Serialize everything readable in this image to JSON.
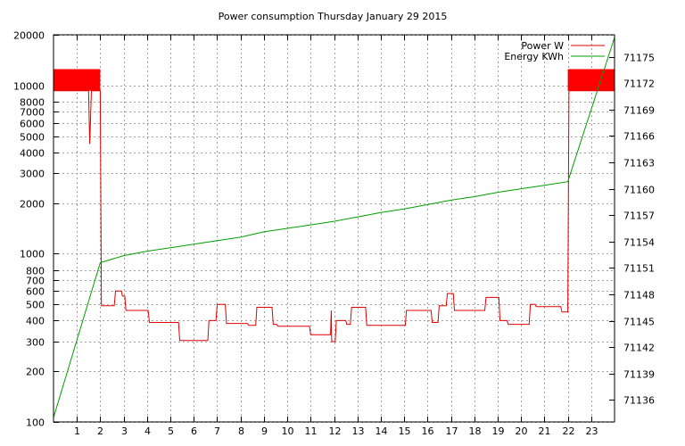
{
  "chart_data": {
    "type": "line",
    "title": "Power consumption Thursday January 29 2015",
    "xlabel": "",
    "ylabel": "",
    "y2label": "",
    "grid": true,
    "legend_position": "top-right",
    "xlim": [
      0,
      24
    ],
    "x_ticks": [
      1,
      2,
      3,
      4,
      5,
      6,
      7,
      8,
      9,
      10,
      11,
      12,
      13,
      14,
      15,
      16,
      17,
      18,
      19,
      20,
      21,
      22,
      23
    ],
    "y_scale": "log",
    "ylim": [
      100,
      20000
    ],
    "y_ticks": [
      100,
      200,
      300,
      400,
      500,
      600,
      700,
      800,
      1000,
      2000,
      3000,
      4000,
      5000,
      6000,
      7000,
      8000,
      10000,
      20000
    ],
    "y2lim": [
      71133.5,
      71177.5
    ],
    "y2_ticks": [
      71136,
      71139,
      71142,
      71145,
      71148,
      71151,
      71154,
      71157,
      71160,
      71163,
      71166,
      71169,
      71172,
      71175
    ],
    "series": [
      {
        "name": "Power W",
        "axis": "left",
        "color": "#e00000",
        "fluctuating_band": {
          "low": 9300,
          "high": 12500,
          "ranges": [
            [
              0,
              2
            ],
            [
              22,
              24
            ]
          ]
        },
        "points": [
          [
            0,
            9300
          ],
          [
            1.5,
            9300
          ],
          [
            1.55,
            4500
          ],
          [
            1.62,
            9300
          ],
          [
            2.0,
            9300
          ],
          [
            2.05,
            490
          ],
          [
            2.6,
            490
          ],
          [
            2.65,
            600
          ],
          [
            2.9,
            600
          ],
          [
            2.95,
            560
          ],
          [
            3.05,
            560
          ],
          [
            3.1,
            460
          ],
          [
            4.05,
            460
          ],
          [
            4.1,
            390
          ],
          [
            5.35,
            390
          ],
          [
            5.4,
            305
          ],
          [
            6.6,
            305
          ],
          [
            6.65,
            400
          ],
          [
            6.95,
            400
          ],
          [
            7.0,
            500
          ],
          [
            7.35,
            500
          ],
          [
            7.4,
            385
          ],
          [
            8.3,
            385
          ],
          [
            8.35,
            375
          ],
          [
            8.65,
            375
          ],
          [
            8.7,
            480
          ],
          [
            9.35,
            480
          ],
          [
            9.4,
            380
          ],
          [
            9.55,
            380
          ],
          [
            9.6,
            370
          ],
          [
            10.95,
            370
          ],
          [
            11.0,
            330
          ],
          [
            11.85,
            330
          ],
          [
            11.88,
            460
          ],
          [
            11.9,
            300
          ],
          [
            12.05,
            300
          ],
          [
            12.1,
            400
          ],
          [
            12.5,
            400
          ],
          [
            12.55,
            380
          ],
          [
            12.7,
            380
          ],
          [
            12.75,
            480
          ],
          [
            13.35,
            480
          ],
          [
            13.4,
            375
          ],
          [
            15.05,
            375
          ],
          [
            15.1,
            460
          ],
          [
            16.15,
            460
          ],
          [
            16.2,
            390
          ],
          [
            16.45,
            390
          ],
          [
            16.5,
            490
          ],
          [
            16.8,
            490
          ],
          [
            16.85,
            580
          ],
          [
            17.1,
            580
          ],
          [
            17.15,
            460
          ],
          [
            18.45,
            460
          ],
          [
            18.5,
            550
          ],
          [
            19.05,
            550
          ],
          [
            19.1,
            400
          ],
          [
            19.4,
            400
          ],
          [
            19.45,
            380
          ],
          [
            20.35,
            380
          ],
          [
            20.4,
            500
          ],
          [
            20.6,
            500
          ],
          [
            20.65,
            485
          ],
          [
            21.7,
            485
          ],
          [
            21.75,
            450
          ],
          [
            22.0,
            450
          ],
          [
            22.05,
            9300
          ],
          [
            24,
            9300
          ]
        ]
      },
      {
        "name": "Energy KWh",
        "axis": "right",
        "color": "#00a000",
        "points": [
          [
            0,
            71134
          ],
          [
            2.0,
            71151.6
          ],
          [
            3.0,
            71152.4
          ],
          [
            4.0,
            71152.9
          ],
          [
            5.0,
            71153.3
          ],
          [
            6.0,
            71153.7
          ],
          [
            7.0,
            71154.1
          ],
          [
            8.0,
            71154.5
          ],
          [
            9.0,
            71155.1
          ],
          [
            10.0,
            71155.5
          ],
          [
            11.0,
            71155.9
          ],
          [
            12.0,
            71156.3
          ],
          [
            13.0,
            71156.8
          ],
          [
            14.0,
            71157.3
          ],
          [
            15.0,
            71157.7
          ],
          [
            16.0,
            71158.2
          ],
          [
            17.0,
            71158.7
          ],
          [
            18.0,
            71159.1
          ],
          [
            19.0,
            71159.6
          ],
          [
            20.0,
            71160.0
          ],
          [
            21.0,
            71160.4
          ],
          [
            22.0,
            71160.8
          ],
          [
            24.0,
            71177.2
          ]
        ]
      }
    ]
  }
}
